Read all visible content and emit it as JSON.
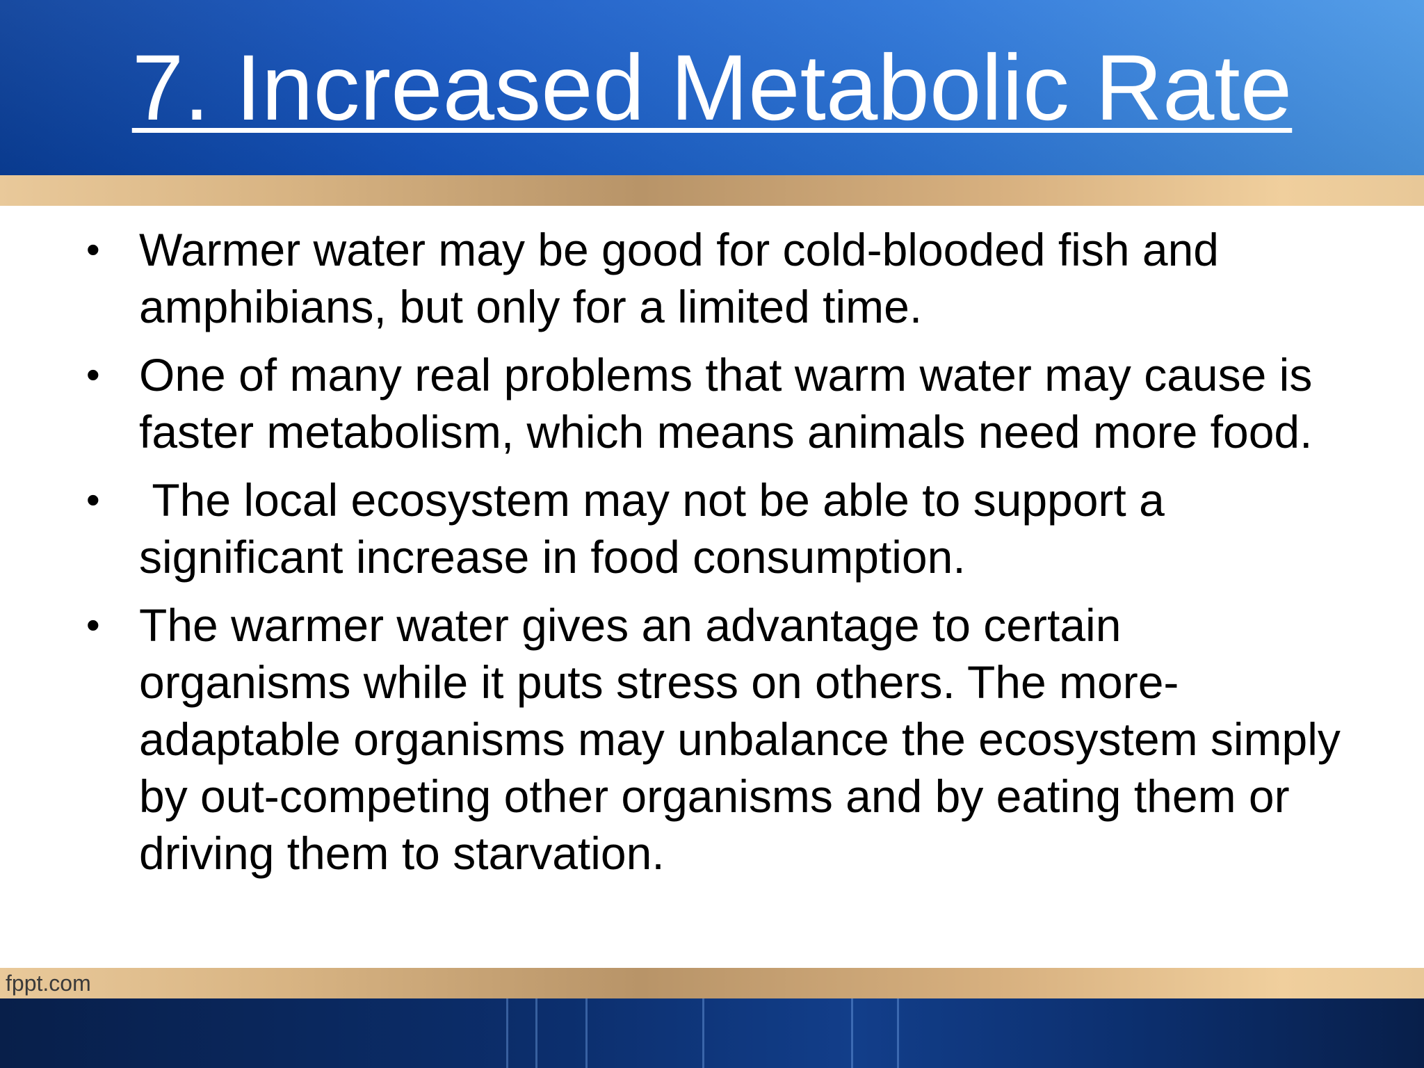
{
  "slide": {
    "title": "7. Increased Metabolic Rate",
    "bullets": [
      "Warmer water may be good for cold-blooded fish and amphibians, but only for a limited time.",
      "One of many real problems that warm water may cause is faster metabolism, which means animals need more food.",
      " The local ecosystem may not be able to support a significant increase in food consumption.",
      "The warmer water gives an advantage to certain organisms while it puts stress on others. The more-adaptable organisms may unbalance the ecosystem simply by out-competing other organisms and by eating them or driving them to starvation."
    ],
    "bullet_symbol": "•"
  },
  "footer": {
    "brand": "fppt.com"
  },
  "colors": {
    "header_blue": "#1556c2",
    "band_tan": "#d8b483",
    "footer_navy": "#0c2f6e",
    "text": "#000000",
    "title_text": "#ffffff"
  }
}
